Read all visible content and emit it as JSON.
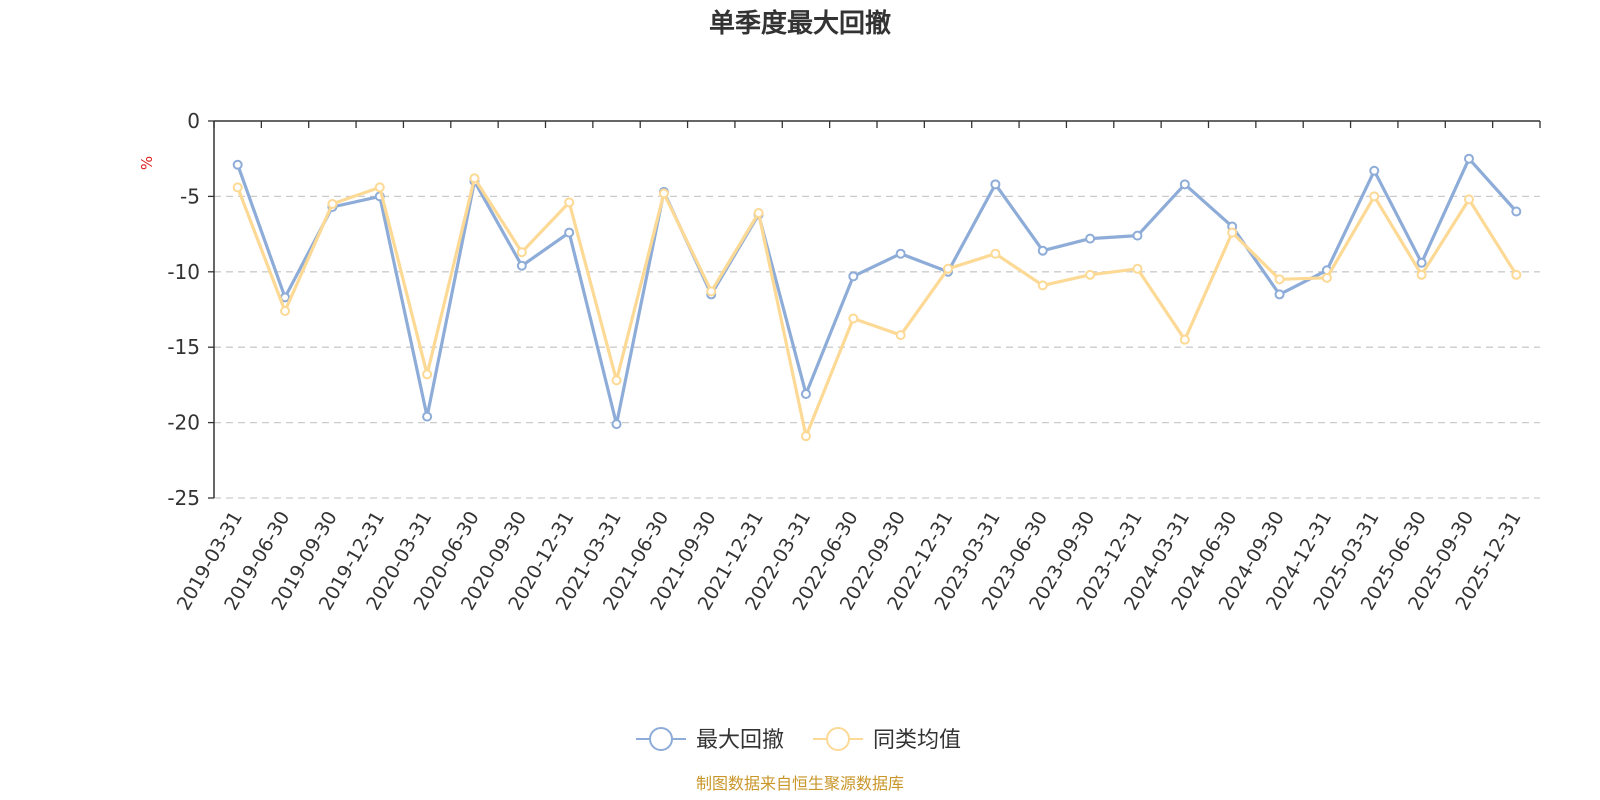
{
  "chart_data": {
    "type": "line",
    "title": "单季度最大回撤",
    "ylabel": "%",
    "ylim": [
      -25,
      0
    ],
    "yticks": [
      0,
      -5,
      -10,
      -15,
      -20,
      -25
    ],
    "grid": "horizontal-dashed",
    "legend_position": "bottom-center",
    "categories": [
      "2019-03-31",
      "2019-06-30",
      "2019-09-30",
      "2019-12-31",
      "2020-03-31",
      "2020-06-30",
      "2020-09-30",
      "2020-12-31",
      "2021-03-31",
      "2021-06-30",
      "2021-09-30",
      "2021-12-31",
      "2022-03-31",
      "2022-06-30",
      "2022-09-30",
      "2022-12-31",
      "2023-03-31",
      "2023-06-30",
      "2023-09-30",
      "2023-12-31",
      "2024-03-31",
      "2024-06-30",
      "2024-09-30",
      "2024-12-31",
      "2025-03-31",
      "2025-06-30",
      "2025-09-30",
      "2025-12-31"
    ],
    "series": [
      {
        "name": "最大回撤",
        "color": "#8eacd8",
        "values": [
          -2.9,
          -11.7,
          -5.7,
          -5.0,
          -19.6,
          -4.0,
          -9.6,
          -7.4,
          -20.1,
          -4.7,
          -11.5,
          -6.2,
          -18.1,
          -10.3,
          -8.8,
          -10.0,
          -4.2,
          -8.6,
          -7.8,
          -7.6,
          -4.2,
          -7.0,
          -11.5,
          -9.9,
          -3.3,
          -9.4,
          -2.5,
          -6.0
        ]
      },
      {
        "name": "同类均值",
        "color": "#fdd996",
        "values": [
          -4.4,
          -12.6,
          -5.5,
          -4.4,
          -16.8,
          -3.8,
          -8.7,
          -5.4,
          -17.2,
          -4.8,
          -11.3,
          -6.1,
          -20.9,
          -13.1,
          -14.2,
          -9.8,
          -8.8,
          -10.9,
          -10.2,
          -9.8,
          -14.5,
          -7.4,
          -10.5,
          -10.4,
          -5.0,
          -10.2,
          -5.2,
          -10.2
        ]
      }
    ]
  },
  "source_note": "制图数据来自恒生聚源数据库"
}
